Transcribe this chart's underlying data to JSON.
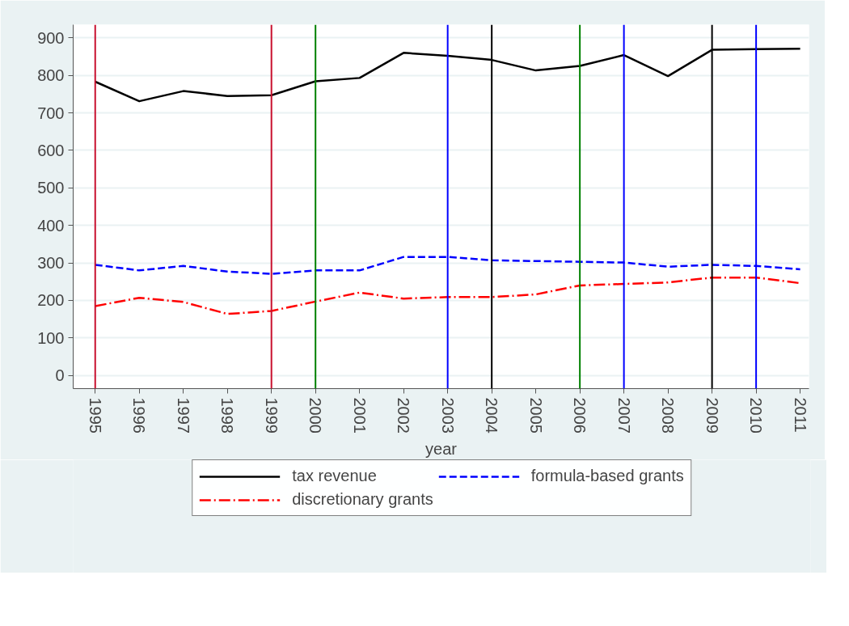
{
  "chart_data": {
    "type": "line",
    "xlabel": "year",
    "x": [
      1995,
      1996,
      1997,
      1998,
      1999,
      2000,
      2001,
      2002,
      2003,
      2004,
      2005,
      2006,
      2007,
      2008,
      2009,
      2010,
      2011
    ],
    "series": [
      {
        "name": "tax revenue",
        "color": "#000000",
        "line_style": "solid",
        "values": [
          783,
          731,
          758,
          745,
          747,
          784,
          793,
          860,
          852,
          841,
          813,
          825,
          854,
          798,
          868,
          870,
          871
        ]
      },
      {
        "name": "formula-based grants",
        "color": "#0000ff",
        "line_style": "dashed",
        "values": [
          295,
          280,
          292,
          277,
          271,
          280,
          280,
          316,
          316,
          307,
          305,
          303,
          301,
          290,
          295,
          292,
          283
        ]
      },
      {
        "name": "discretionary grants",
        "color": "#ff0000",
        "line_style": "dashdot",
        "values": [
          185,
          207,
          196,
          164,
          172,
          197,
          221,
          205,
          209,
          209,
          216,
          240,
          244,
          248,
          261,
          261,
          246
        ]
      }
    ],
    "ref_lines": [
      {
        "axis": "x",
        "value": 1995,
        "color": "#c8102e"
      },
      {
        "axis": "x",
        "value": 1999,
        "color": "#c8102e"
      },
      {
        "axis": "x",
        "value": 2000,
        "color": "#008000"
      },
      {
        "axis": "x",
        "value": 2003,
        "color": "#0000ff"
      },
      {
        "axis": "x",
        "value": 2004,
        "color": "#000000"
      },
      {
        "axis": "x",
        "value": 2006,
        "color": "#008000"
      },
      {
        "axis": "x",
        "value": 2007,
        "color": "#0000ff"
      },
      {
        "axis": "x",
        "value": 2009,
        "color": "#000000"
      },
      {
        "axis": "x",
        "value": 2010,
        "color": "#0000ff"
      }
    ],
    "xlim": [
      1994.5,
      2011.2
    ],
    "ylim": [
      -35,
      935
    ],
    "xticks": [
      1995,
      1996,
      1997,
      1998,
      1999,
      2000,
      2001,
      2002,
      2003,
      2004,
      2005,
      2006,
      2007,
      2008,
      2009,
      2010,
      2011
    ],
    "yticks": [
      0,
      100,
      200,
      300,
      400,
      500,
      600,
      700,
      800,
      900
    ],
    "grid": "y",
    "legend": "bottom",
    "marker": "none"
  }
}
